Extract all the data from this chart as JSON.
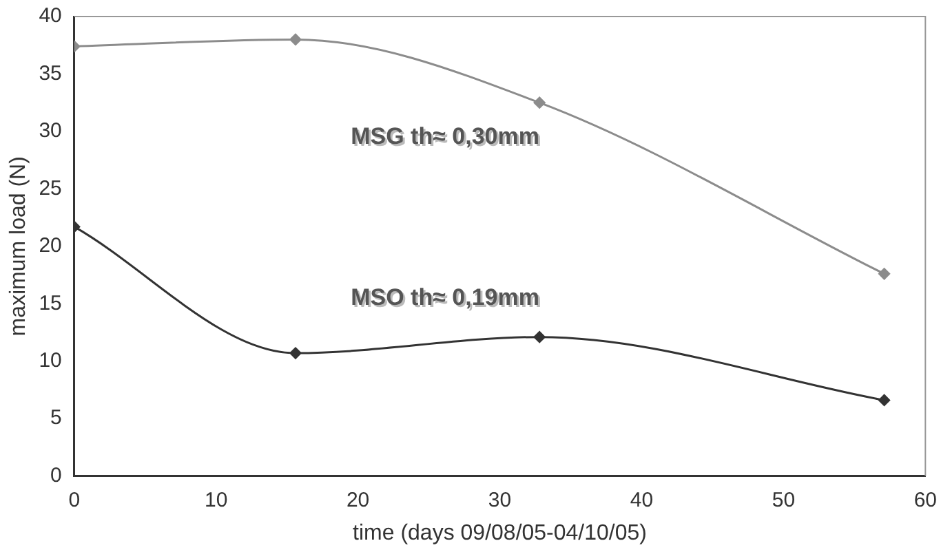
{
  "chart_data": {
    "type": "line",
    "xlabel": "time (days 09/08/05-04/10/05)",
    "ylabel": "maximum load (N)",
    "xlim": [
      0,
      60
    ],
    "xticks": [
      0,
      10,
      20,
      30,
      40,
      50,
      60
    ],
    "ylim": [
      0,
      40
    ],
    "yticks": [
      0,
      5,
      10,
      15,
      20,
      25,
      30,
      35,
      40
    ],
    "grid": false,
    "legend": false,
    "marker": "diamond",
    "line_style": "solid",
    "series": [
      {
        "name": "MSG th≈ 0,30mm",
        "color": "#8c8c8c",
        "x": [
          0,
          15.6,
          32.8,
          57.1
        ],
        "values": [
          37.4,
          38.0,
          32.5,
          17.6
        ]
      },
      {
        "name": "MSO th≈ 0,19mm",
        "color": "#333333",
        "x": [
          0,
          15.6,
          32.8,
          57.1
        ],
        "values": [
          21.7,
          10.7,
          12.1,
          6.6
        ]
      }
    ]
  }
}
